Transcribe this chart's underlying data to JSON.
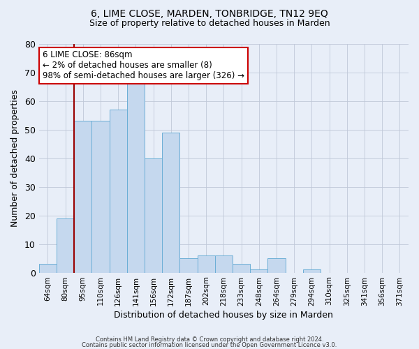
{
  "title1": "6, LIME CLOSE, MARDEN, TONBRIDGE, TN12 9EQ",
  "title2": "Size of property relative to detached houses in Marden",
  "xlabel": "Distribution of detached houses by size in Marden",
  "ylabel": "Number of detached properties",
  "categories": [
    "64sqm",
    "80sqm",
    "95sqm",
    "110sqm",
    "126sqm",
    "141sqm",
    "156sqm",
    "172sqm",
    "187sqm",
    "202sqm",
    "218sqm",
    "233sqm",
    "248sqm",
    "264sqm",
    "279sqm",
    "294sqm",
    "310sqm",
    "325sqm",
    "341sqm",
    "356sqm",
    "371sqm"
  ],
  "values": [
    3,
    19,
    53,
    53,
    57,
    66,
    40,
    49,
    5,
    6,
    6,
    3,
    1,
    5,
    0,
    1,
    0,
    0,
    0,
    0,
    0
  ],
  "bar_color": "#c5d8ee",
  "bar_edge_color": "#6baed6",
  "background_color": "#e8eef8",
  "vline_x": 1.5,
  "vline_color": "#990000",
  "annotation_text": "6 LIME CLOSE: 86sqm\n← 2% of detached houses are smaller (8)\n98% of semi-detached houses are larger (326) →",
  "annotation_box_color": "white",
  "annotation_box_edge_color": "#cc0000",
  "ylim": [
    0,
    80
  ],
  "yticks": [
    0,
    10,
    20,
    30,
    40,
    50,
    60,
    70,
    80
  ],
  "footer1": "Contains HM Land Registry data © Crown copyright and database right 2024.",
  "footer2": "Contains public sector information licensed under the Open Government Licence v3.0.",
  "title1_fontsize": 10,
  "title2_fontsize": 9
}
